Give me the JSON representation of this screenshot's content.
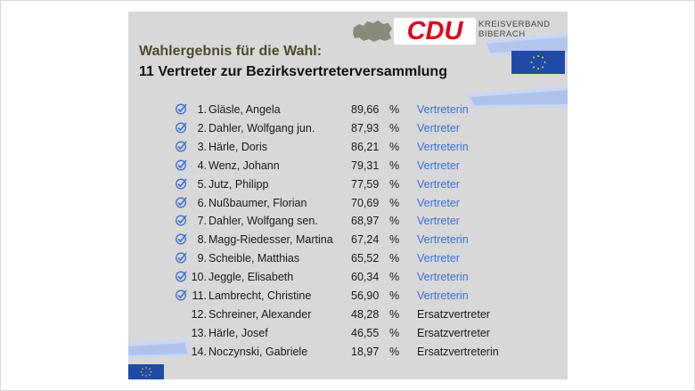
{
  "logo": {
    "brand": "CDU",
    "line1": "KREISVERBAND",
    "line2": "BIBERACH"
  },
  "title": {
    "line1": "Wahlergebnis für die Wahl:",
    "line2": "11 Vertreter zur Bezirksvertreterversammlung"
  },
  "colors": {
    "card_bg": "#d8d8d8",
    "cdu_red": "#e2001a",
    "elected_blue": "#3d6fd8",
    "eu_blue": "#1f4aa8",
    "check_blue": "#3d6fd8"
  },
  "icons": {
    "check": "check-icon",
    "eu_flag": "eu-flag-icon"
  },
  "results": [
    {
      "rank": "1.",
      "name": "Gläsle, Angela",
      "percent": "89,66",
      "pct_sign": "%",
      "role": "Vertreterin",
      "elected": true
    },
    {
      "rank": "2.",
      "name": "Dahler, Wolfgang jun.",
      "percent": "87,93",
      "pct_sign": "%",
      "role": "Vertreter",
      "elected": true
    },
    {
      "rank": "3.",
      "name": "Härle, Doris",
      "percent": "86,21",
      "pct_sign": "%",
      "role": "Vertreterin",
      "elected": true
    },
    {
      "rank": "4.",
      "name": "Wenz, Johann",
      "percent": "79,31",
      "pct_sign": "%",
      "role": "Vertreter",
      "elected": true
    },
    {
      "rank": "5.",
      "name": "Jutz, Philipp",
      "percent": "77,59",
      "pct_sign": "%",
      "role": "Vertreter",
      "elected": true
    },
    {
      "rank": "6.",
      "name": "Nußbaumer, Florian",
      "percent": "70,69",
      "pct_sign": "%",
      "role": "Vertreter",
      "elected": true
    },
    {
      "rank": "7.",
      "name": "Dahler, Wolfgang sen.",
      "percent": "68,97",
      "pct_sign": "%",
      "role": "Vertreter",
      "elected": true
    },
    {
      "rank": "8.",
      "name": "Magg-Riedesser, Martina",
      "percent": "67,24",
      "pct_sign": "%",
      "role": "Vertreterin",
      "elected": true
    },
    {
      "rank": "9.",
      "name": "Scheible, Matthias",
      "percent": "65,52",
      "pct_sign": "%",
      "role": "Vertreter",
      "elected": true
    },
    {
      "rank": "10.",
      "name": "Jeggle, Elisabeth",
      "percent": "60,34",
      "pct_sign": "%",
      "role": "Vertreterin",
      "elected": true
    },
    {
      "rank": "11.",
      "name": "Lambrecht, Christine",
      "percent": "56,90",
      "pct_sign": "%",
      "role": "Vertreterin",
      "elected": true
    },
    {
      "rank": "12.",
      "name": "Schreiner, Alexander",
      "percent": "48,28",
      "pct_sign": "%",
      "role": "Ersatzvertreter",
      "elected": false
    },
    {
      "rank": "13.",
      "name": "Härle, Josef",
      "percent": "46,55",
      "pct_sign": "%",
      "role": "Ersatzvertreter",
      "elected": false
    },
    {
      "rank": "14.",
      "name": "Noczynski, Gabriele",
      "percent": "18,97",
      "pct_sign": "%",
      "role": "Ersatzvertreterin",
      "elected": false
    }
  ]
}
